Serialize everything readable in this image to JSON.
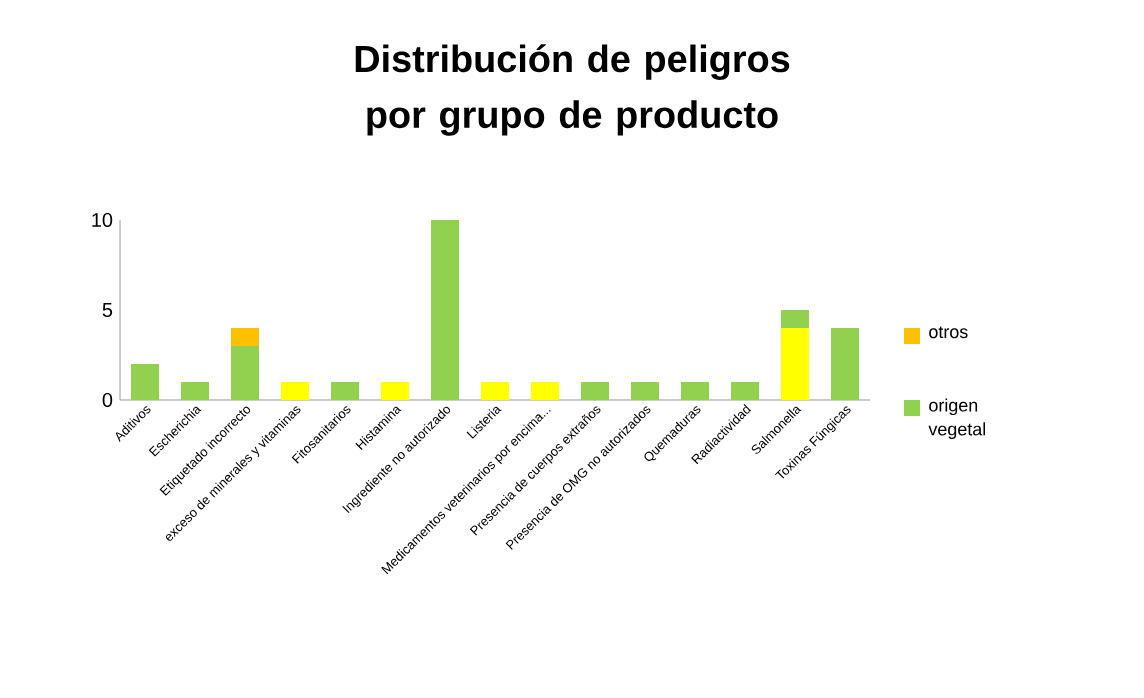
{
  "chart_data": {
    "type": "bar",
    "title": "Distribución de peligros por grupo de producto",
    "stacked": true,
    "categories": [
      "Aditivos",
      "Escherichia",
      "Etiquetado incorrecto",
      "exceso de minerales y vitaminas",
      "Fitosanitarios",
      "Histamina",
      "Ingrediente no autorizado",
      "Listeria",
      "Medicamentos veterinarios por encima...",
      "Presencia de  cuerpos extraños",
      "Presencia de OMG no autorizados",
      "Quemaduras",
      "Radiactividad",
      "Salmonella",
      "Toxinas Fúngicas"
    ],
    "series": [
      {
        "color": "#ffff00",
        "values": [
          null,
          null,
          null,
          1,
          null,
          1,
          null,
          1,
          1,
          null,
          null,
          null,
          null,
          4,
          null
        ]
      },
      {
        "name": "origen vegetal",
        "color": "#92d050",
        "values": [
          2,
          1,
          3,
          null,
          1,
          null,
          10,
          null,
          null,
          1,
          1,
          1,
          1,
          1,
          4
        ]
      },
      {
        "name": "otros",
        "color": "#ffc000",
        "values": [
          null,
          null,
          1,
          null,
          null,
          null,
          null,
          null,
          null,
          null,
          null,
          null,
          null,
          null,
          null
        ]
      }
    ],
    "ylim": [
      0,
      10
    ],
    "yticks": [
      0,
      5,
      10
    ],
    "grid": false,
    "legend": "right"
  }
}
